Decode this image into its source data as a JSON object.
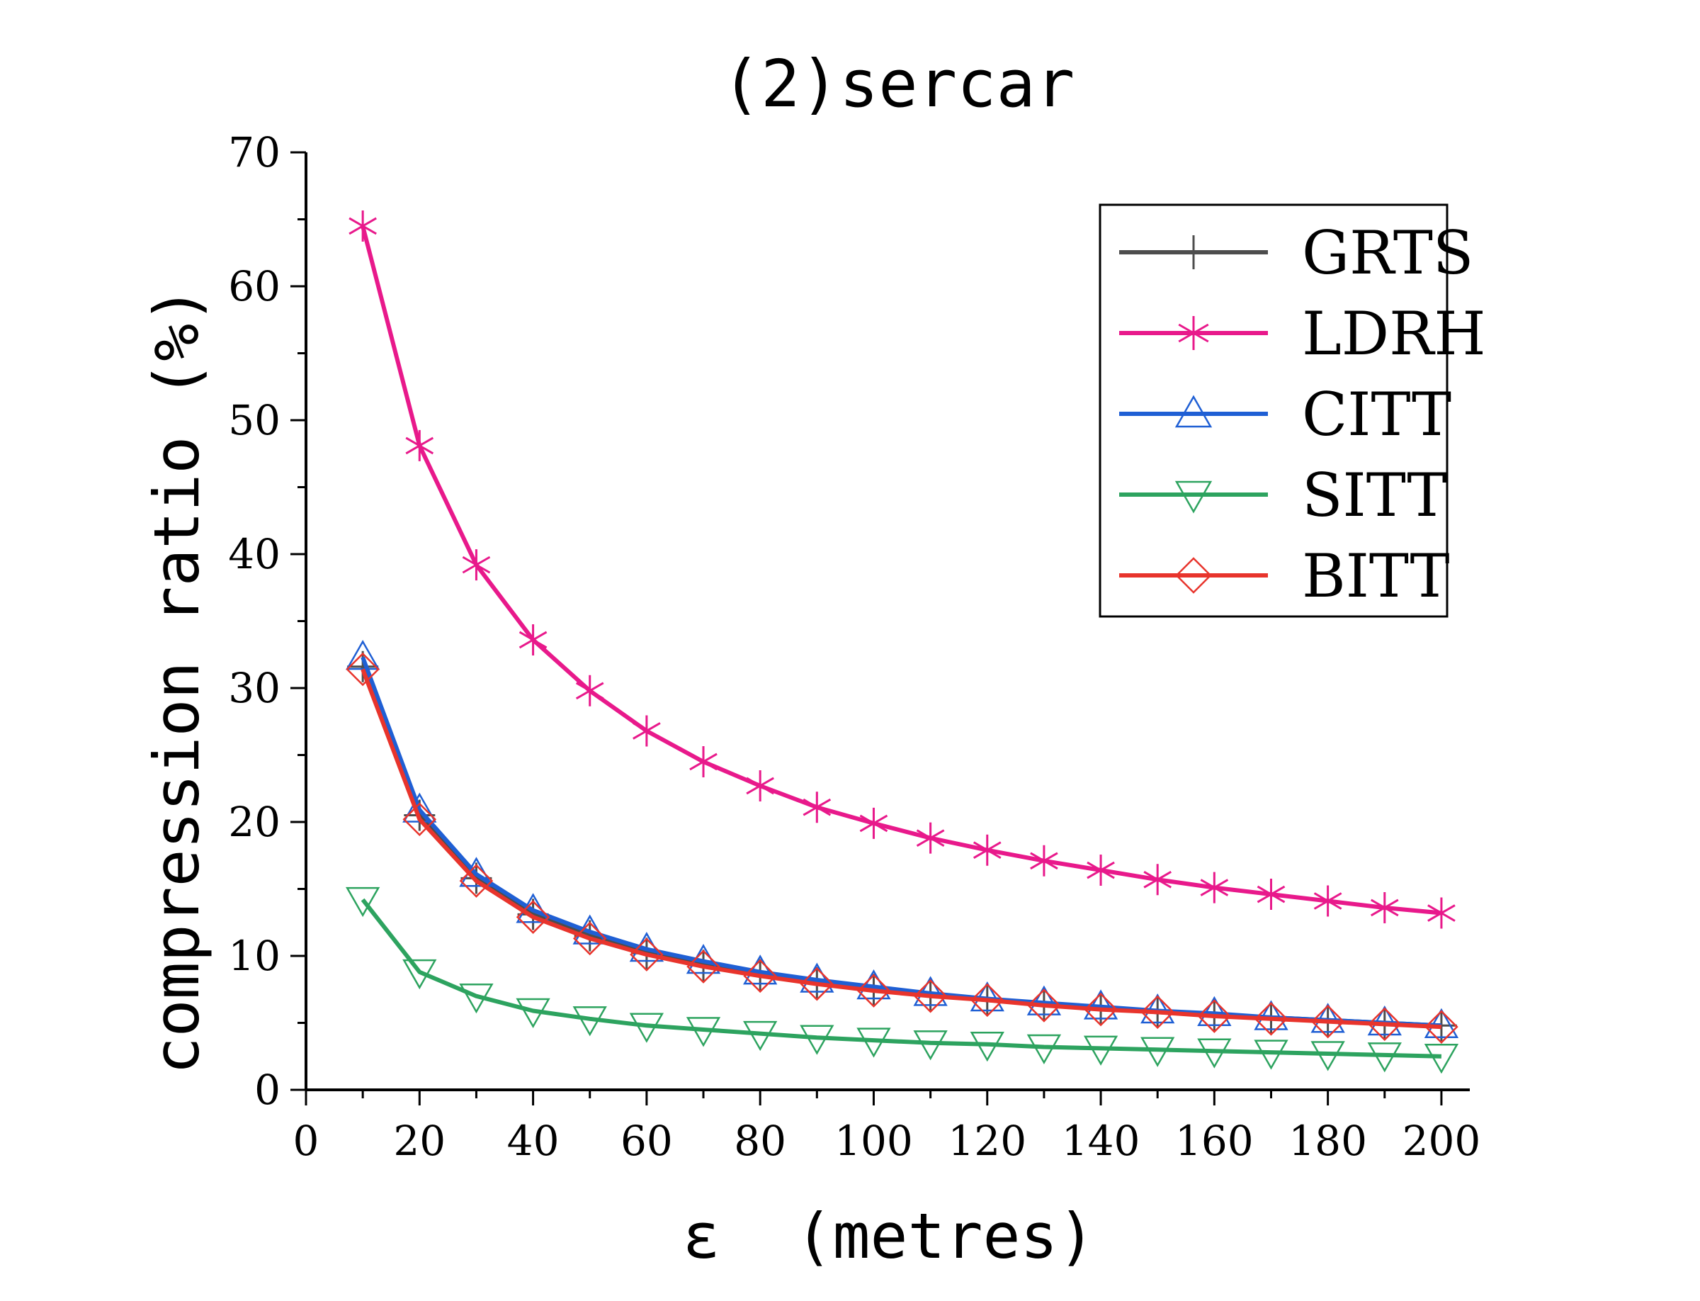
{
  "chart_data": {
    "type": "line",
    "title": "(2)sercar",
    "xlabel": "ε  (metres)",
    "ylabel": "compression ratio (%)",
    "xlim": [
      0,
      205
    ],
    "ylim": [
      0,
      70
    ],
    "xticks": [
      0,
      20,
      40,
      60,
      80,
      100,
      120,
      140,
      160,
      180,
      200
    ],
    "yticks": [
      0,
      10,
      20,
      30,
      40,
      50,
      60,
      70
    ],
    "grid": false,
    "legend_position": "top-right",
    "x": [
      10,
      20,
      30,
      40,
      50,
      60,
      70,
      80,
      90,
      100,
      110,
      120,
      130,
      140,
      150,
      160,
      170,
      180,
      190,
      200
    ],
    "series": [
      {
        "name": "GRTS",
        "color": "#4d4d4d",
        "marker": "plus",
        "values": [
          31.6,
          20.5,
          15.8,
          13.1,
          11.5,
          10.2,
          9.3,
          8.6,
          8.0,
          7.5,
          7.1,
          6.7,
          6.4,
          6.1,
          5.8,
          5.6,
          5.4,
          5.2,
          5.0,
          4.8
        ]
      },
      {
        "name": "LDRH",
        "color": "#e8198b",
        "marker": "asterisk",
        "values": [
          64.5,
          48.1,
          39.2,
          33.6,
          29.8,
          26.8,
          24.5,
          22.7,
          21.1,
          19.9,
          18.8,
          17.9,
          17.1,
          16.4,
          15.7,
          15.1,
          14.6,
          14.1,
          13.6,
          13.2
        ]
      },
      {
        "name": "CITT",
        "color": "#1f5fd4",
        "marker": "triangle-up",
        "values": [
          32.3,
          20.9,
          16.1,
          13.4,
          11.8,
          10.5,
          9.6,
          8.8,
          8.2,
          7.7,
          7.2,
          6.8,
          6.5,
          6.2,
          5.9,
          5.7,
          5.4,
          5.2,
          5.0,
          4.8
        ]
      },
      {
        "name": "SITT",
        "color": "#2da35f",
        "marker": "triangle-down",
        "values": [
          14.2,
          8.8,
          7.0,
          5.9,
          5.3,
          4.8,
          4.5,
          4.2,
          3.9,
          3.7,
          3.5,
          3.4,
          3.2,
          3.1,
          3.0,
          2.9,
          2.8,
          2.7,
          2.6,
          2.5
        ]
      },
      {
        "name": "BITT",
        "color": "#e8342c",
        "marker": "diamond",
        "values": [
          31.4,
          20.2,
          15.6,
          12.9,
          11.3,
          10.1,
          9.2,
          8.5,
          7.9,
          7.4,
          7.0,
          6.7,
          6.3,
          6.0,
          5.8,
          5.5,
          5.3,
          5.1,
          4.9,
          4.7
        ]
      }
    ]
  }
}
